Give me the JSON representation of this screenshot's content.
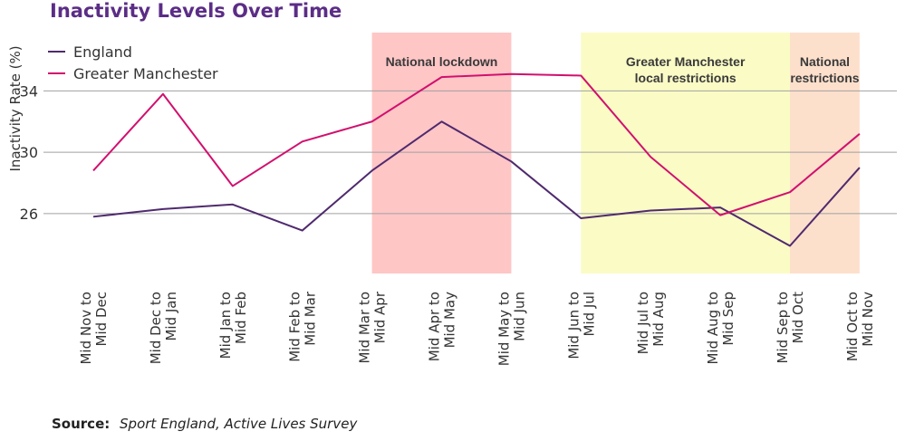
{
  "title": "Inactivity Levels Over Time",
  "source": {
    "label": "Source:",
    "text": "Sport England, Active Lives Survey"
  },
  "colors": {
    "england": "#4f2a6e",
    "greater_manchester": "#d1106e",
    "title": "#5b2d86",
    "lockdown_band": "#ffc6c6",
    "gm_restrictions_band": "#fbfbc6",
    "national_restrictions_band": "#fde0cc",
    "grid": "#a0a0a0"
  },
  "chart_data": {
    "type": "line",
    "title": "Inactivity Levels Over Time",
    "xlabel": "",
    "ylabel": "Inactivity Rate (%)",
    "ylim": [
      22.1,
      37.8
    ],
    "yticks": [
      26,
      30,
      34
    ],
    "grid": true,
    "legend_position": "top-left",
    "categories": [
      [
        "Mid Nov to",
        "Mid Dec"
      ],
      [
        "Mid Dec to",
        "Mid Jan"
      ],
      [
        "Mid Jan to",
        "Mid Feb"
      ],
      [
        "Mid Feb to",
        "Mid Mar"
      ],
      [
        "Mid Mar to",
        "Mid Apr"
      ],
      [
        "Mid Apr to",
        "Mid May"
      ],
      [
        "Mid May to",
        "Mid Jun"
      ],
      [
        "Mid Jun to",
        "Mid Jul"
      ],
      [
        "Mid Jul to",
        "Mid Aug"
      ],
      [
        "Mid Aug to",
        "Mid Sep"
      ],
      [
        "Mid Sep to",
        "Mid Oct"
      ],
      [
        "Mid Oct to",
        "Mid Nov"
      ]
    ],
    "series": [
      {
        "name": "England",
        "color": "#4f2a6e",
        "values": [
          25.8,
          26.3,
          26.6,
          24.9,
          28.8,
          32.0,
          29.4,
          25.7,
          26.2,
          26.4,
          23.9,
          29.0
        ]
      },
      {
        "name": "Greater Manchester",
        "color": "#d1106e",
        "values": [
          28.8,
          33.8,
          27.8,
          30.7,
          32.0,
          34.9,
          35.1,
          35.0,
          29.7,
          25.9,
          27.4,
          31.2
        ]
      }
    ],
    "annotations": [
      {
        "lines": [
          "National lockdown"
        ],
        "from_index": 4,
        "to_index": 6,
        "color": "#ffc6c6"
      },
      {
        "lines": [
          "Greater Manchester",
          "local restrictions"
        ],
        "from_index": 7,
        "to_index": 10,
        "color": "#fbfbc6"
      },
      {
        "lines": [
          "National",
          "restrictions"
        ],
        "from_index": 10,
        "to_index": 11,
        "color": "#fde0cc"
      }
    ]
  }
}
